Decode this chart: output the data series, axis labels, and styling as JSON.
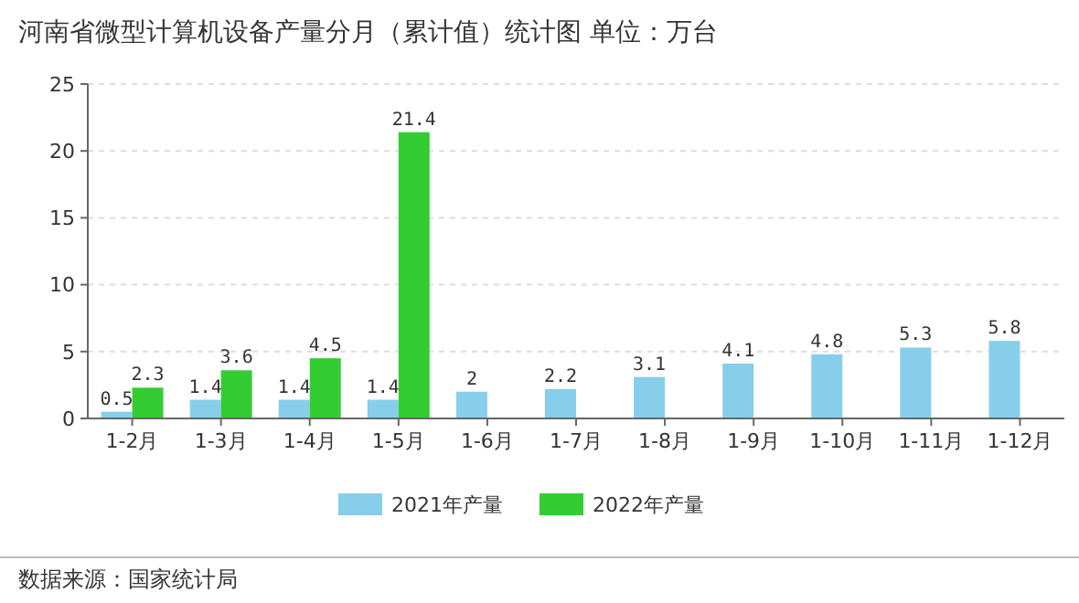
{
  "chart_data": {
    "type": "bar",
    "title": "河南省微型计算机设备产量分月（累计值）统计图 单位：万台",
    "categories": [
      "1-2月",
      "1-3月",
      "1-4月",
      "1-5月",
      "1-6月",
      "1-7月",
      "1-8月",
      "1-9月",
      "1-10月",
      "1-11月",
      "1-12月"
    ],
    "series": [
      {
        "name": "2021年产量",
        "color": "#87ceeb",
        "values": [
          0.5,
          1.4,
          1.4,
          1.4,
          2,
          2.2,
          3.1,
          4.1,
          4.8,
          5.3,
          5.8
        ]
      },
      {
        "name": "2022年产量",
        "color": "#33cc33",
        "values": [
          2.3,
          3.6,
          4.5,
          21.4,
          null,
          null,
          null,
          null,
          null,
          null,
          null
        ]
      }
    ],
    "ylim": [
      0,
      25
    ],
    "yticks": [
      0,
      5,
      10,
      15,
      20,
      25
    ],
    "grid": "y",
    "legend": "bottom",
    "data_labels": true,
    "annotations": [
      "数据来源：国家统计局"
    ]
  }
}
